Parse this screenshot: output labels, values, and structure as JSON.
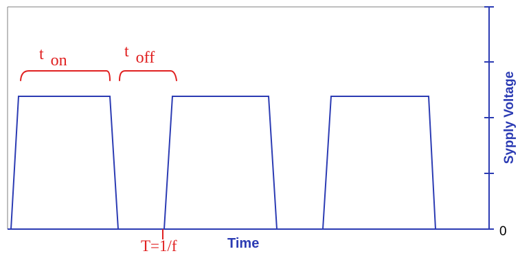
{
  "labels": {
    "t_on_main": "t",
    "t_on_sub": "on",
    "t_off_main": "t",
    "t_off_sub": "off",
    "period": "T=1/f",
    "x_axis": "Time",
    "y_axis": "Sypply Voltage",
    "zero": "0"
  },
  "colors": {
    "signal": "#2b3bb3",
    "annotation": "#e02020"
  }
}
